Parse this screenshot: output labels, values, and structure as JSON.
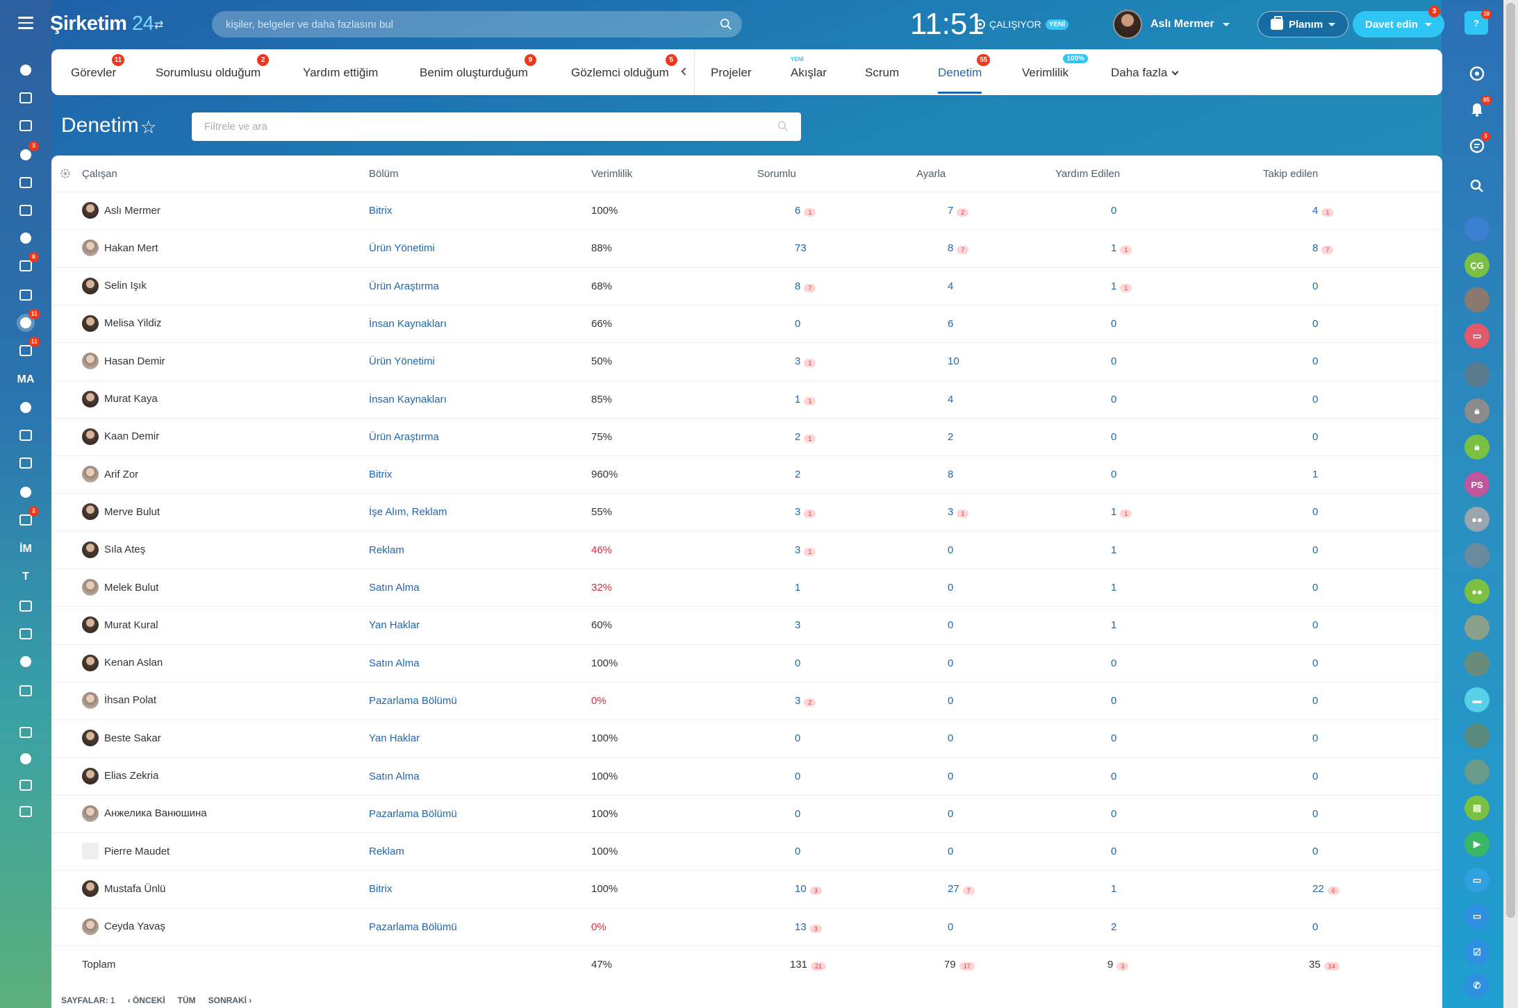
{
  "app": {
    "logo_name": "Şirketim",
    "logo_num": "24"
  },
  "header": {
    "search_placeholder": "kişiler, belgeler ve daha fazlasını bul",
    "clock": "11:51",
    "status": "ÇALIŞIYOR",
    "status_badge": "YENİ",
    "user_name": "Aslı Mermer",
    "plan_label": "Planım",
    "invite_label": "Davet edin",
    "invite_count": "3"
  },
  "left_nav": {
    "items": [
      {
        "icon": "feed-icon"
      },
      {
        "icon": "inbox-icon"
      },
      {
        "icon": "chat-icon"
      },
      {
        "icon": "contacts-icon",
        "count": "3"
      },
      {
        "icon": "calendar-icon"
      },
      {
        "icon": "document-icon"
      },
      {
        "icon": "drive-icon"
      },
      {
        "icon": "mail-icon",
        "count": "8"
      },
      {
        "icon": "group-icon"
      },
      {
        "icon": "tasks-icon",
        "count": "11"
      },
      {
        "icon": "filter-icon",
        "count": "11"
      },
      {
        "icon": "ma-icon",
        "text": "MA"
      },
      {
        "icon": "target-icon"
      },
      {
        "icon": "cart-icon"
      },
      {
        "icon": "sign-icon"
      },
      {
        "icon": "box-icon"
      },
      {
        "icon": "shop-icon",
        "count": "2"
      },
      {
        "icon": "im-icon",
        "text": "İM"
      },
      {
        "icon": "t-icon",
        "text": "T"
      },
      {
        "icon": "bank-icon"
      },
      {
        "icon": "edit-icon"
      },
      {
        "icon": "chart-icon"
      },
      {
        "icon": "more-icon"
      },
      {
        "icon": "help-icon"
      },
      {
        "icon": "sitemap-icon"
      },
      {
        "icon": "settings-icon"
      },
      {
        "icon": "plus-icon"
      }
    ]
  },
  "right_nav": {
    "help_count": "10",
    "notif_count": "65",
    "chat_count": "3",
    "user_initials_cg": "ÇG",
    "user_initials_ps": "PS"
  },
  "tabs": [
    {
      "label": "Görevler",
      "count": "11"
    },
    {
      "label": "Sorumlusu olduğum",
      "count": "2"
    },
    {
      "label": "Yardım ettiğim"
    },
    {
      "label": "Benim oluşturduğum",
      "count": "9"
    },
    {
      "label": "Gözlemci olduğum",
      "count": "5"
    },
    {
      "label": "Projeler"
    },
    {
      "label": "Akışlar",
      "sup": "YENİ"
    },
    {
      "label": "Scrum"
    },
    {
      "label": "Denetim",
      "count": "55",
      "active": true
    },
    {
      "label": "Verimlilik",
      "pct": "100%"
    },
    {
      "label": "Daha fazla"
    }
  ],
  "page": {
    "title": "Denetim",
    "filter_placeholder": "Filtrele ve ara"
  },
  "columns": [
    "Çalışan",
    "Bölüm",
    "Verimlilik",
    "Sorumlu",
    "Ayarla",
    "Yardım Edilen",
    "Takip edilen"
  ],
  "rows": [
    {
      "name": "Aslı Mermer",
      "dept": "Bitrix",
      "eff": "100%",
      "red": false,
      "s": "6",
      "sb": "1",
      "a": "7",
      "ab": "2",
      "y": "0",
      "yb": "",
      "t": "4",
      "tb": "1"
    },
    {
      "name": "Hakan Mert",
      "dept": "Ürün Yönetimi",
      "eff": "88%",
      "red": false,
      "s": "73",
      "sb": "",
      "a": "8",
      "ab": "7",
      "y": "1",
      "yb": "1",
      "t": "8",
      "tb": "7"
    },
    {
      "name": "Selin Işık",
      "dept": "Ürün Araştırma",
      "eff": "68%",
      "red": false,
      "s": "8",
      "sb": "7",
      "a": "4",
      "ab": "",
      "y": "1",
      "yb": "1",
      "t": "0",
      "tb": ""
    },
    {
      "name": "Melisa Yildiz",
      "dept": "İnsan Kaynakları",
      "eff": "66%",
      "red": false,
      "s": "0",
      "sb": "",
      "a": "6",
      "ab": "",
      "y": "0",
      "yb": "",
      "t": "0",
      "tb": ""
    },
    {
      "name": "Hasan Demir",
      "dept": "Ürün Yönetimi",
      "eff": "50%",
      "red": false,
      "s": "3",
      "sb": "1",
      "a": "10",
      "ab": "",
      "y": "0",
      "yb": "",
      "t": "0",
      "tb": ""
    },
    {
      "name": "Murat Kaya",
      "dept": "İnsan Kaynakları",
      "eff": "85%",
      "red": false,
      "s": "1",
      "sb": "1",
      "a": "4",
      "ab": "",
      "y": "0",
      "yb": "",
      "t": "0",
      "tb": ""
    },
    {
      "name": "Kaan Demir",
      "dept": "Ürün Araştırma",
      "eff": "75%",
      "red": false,
      "s": "2",
      "sb": "1",
      "a": "2",
      "ab": "",
      "y": "0",
      "yb": "",
      "t": "0",
      "tb": ""
    },
    {
      "name": "Arif Zor",
      "dept": "Bitrix",
      "eff": "960%",
      "red": false,
      "s": "2",
      "sb": "",
      "a": "8",
      "ab": "",
      "y": "0",
      "yb": "",
      "t": "1",
      "tb": ""
    },
    {
      "name": "Merve Bulut",
      "dept": "İşe Alım, Reklam",
      "eff": "55%",
      "red": false,
      "s": "3",
      "sb": "1",
      "a": "3",
      "ab": "1",
      "y": "1",
      "yb": "1",
      "t": "0",
      "tb": ""
    },
    {
      "name": "Sıla Ateş",
      "dept": "Reklam",
      "eff": "46%",
      "red": true,
      "s": "3",
      "sb": "1",
      "a": "0",
      "ab": "",
      "y": "1",
      "yb": "",
      "t": "0",
      "tb": ""
    },
    {
      "name": "Melek Bulut",
      "dept": "Satın Alma",
      "eff": "32%",
      "red": true,
      "s": "1",
      "sb": "",
      "a": "0",
      "ab": "",
      "y": "1",
      "yb": "",
      "t": "0",
      "tb": ""
    },
    {
      "name": "Murat Kural",
      "dept": "Yan Haklar",
      "eff": "60%",
      "red": false,
      "s": "3",
      "sb": "",
      "a": "0",
      "ab": "",
      "y": "1",
      "yb": "",
      "t": "0",
      "tb": ""
    },
    {
      "name": "Kenan Aslan",
      "dept": "Satın Alma",
      "eff": "100%",
      "red": false,
      "s": "0",
      "sb": "",
      "a": "0",
      "ab": "",
      "y": "0",
      "yb": "",
      "t": "0",
      "tb": ""
    },
    {
      "name": "İhsan Polat",
      "dept": "Pazarlama Bölümü",
      "eff": "0%",
      "red": true,
      "s": "3",
      "sb": "2",
      "a": "0",
      "ab": "",
      "y": "0",
      "yb": "",
      "t": "0",
      "tb": ""
    },
    {
      "name": "Beste Sakar",
      "dept": "Yan Haklar",
      "eff": "100%",
      "red": false,
      "s": "0",
      "sb": "",
      "a": "0",
      "ab": "",
      "y": "0",
      "yb": "",
      "t": "0",
      "tb": ""
    },
    {
      "name": "Elias Zekria",
      "dept": "Satın Alma",
      "eff": "100%",
      "red": false,
      "s": "0",
      "sb": "",
      "a": "0",
      "ab": "",
      "y": "0",
      "yb": "",
      "t": "0",
      "tb": ""
    },
    {
      "name": "Анжелика Ванюшина",
      "dept": "Pazarlama Bölümü",
      "eff": "100%",
      "red": false,
      "s": "0",
      "sb": "",
      "a": "0",
      "ab": "",
      "y": "0",
      "yb": "",
      "t": "0",
      "tb": ""
    },
    {
      "name": "Pierre Maudet",
      "dept": "Reklam",
      "eff": "100%",
      "red": false,
      "s": "0",
      "sb": "",
      "a": "0",
      "ab": "",
      "y": "0",
      "yb": "",
      "t": "0",
      "tb": "",
      "noavatar": true
    },
    {
      "name": "Mustafa Ünlü",
      "dept": "Bitrix",
      "eff": "100%",
      "red": false,
      "s": "10",
      "sb": "3",
      "a": "27",
      "ab": "7",
      "y": "1",
      "yb": "",
      "t": "22",
      "tb": "6"
    },
    {
      "name": "Ceyda Yavaş",
      "dept": "Pazarlama Bölümü",
      "eff": "0%",
      "red": true,
      "s": "13",
      "sb": "3",
      "a": "0",
      "ab": "",
      "y": "2",
      "yb": "",
      "t": "0",
      "tb": ""
    }
  ],
  "total": {
    "label": "Toplam",
    "eff": "47%",
    "s": "131",
    "sb": "21",
    "a": "79",
    "ab": "17",
    "y": "9",
    "yb": "3",
    "t": "35",
    "tb": "14"
  },
  "pager": {
    "pages_label": "SAYFALAR:",
    "current": "1",
    "prev": "ÖNCEKİ",
    "all": "TÜM",
    "next": "SONRAKİ"
  },
  "colors": {
    "accent": "#2067b0",
    "danger": "#d0313d",
    "invite": "#2fc6f6",
    "badge": "#f0371b"
  }
}
